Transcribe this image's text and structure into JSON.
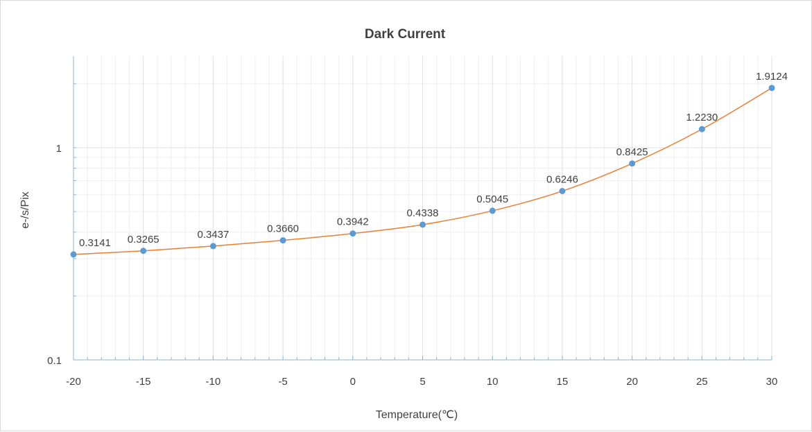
{
  "chart_data": {
    "type": "line",
    "title": "Dark Current",
    "xlabel": "Temperature(℃)",
    "ylabel": "e-/s/Pix",
    "x": [
      -20,
      -15,
      -10,
      -5,
      0,
      5,
      10,
      15,
      20,
      25,
      30
    ],
    "series": [
      {
        "values": [
          0.3141,
          0.3265,
          0.3437,
          0.366,
          0.3942,
          0.4338,
          0.5045,
          0.6246,
          0.8425,
          1.223,
          1.9124
        ],
        "labels": [
          "0.3141",
          "0.3265",
          "0.3437",
          "0.3660",
          "0.3942",
          "0.4338",
          "0.5045",
          "0.6246",
          "0.8425",
          "1.2230",
          "1.9124"
        ]
      }
    ],
    "xlim": [
      -20,
      30
    ],
    "ylim": [
      0.1,
      2.7
    ],
    "yscale": "log",
    "x_ticks": [
      "-20",
      "-15",
      "-10",
      "-5",
      "0",
      "5",
      "10",
      "15",
      "20",
      "25",
      "30"
    ],
    "y_ticks": [
      {
        "value": 0.1,
        "label": "0.1"
      },
      {
        "value": 1,
        "label": "1"
      }
    ],
    "grid": true,
    "colors": {
      "line": "#ed7d31",
      "marker": "#5b9bd5",
      "grid": "#e0e0e0",
      "axis": "#8ab4d4"
    }
  }
}
